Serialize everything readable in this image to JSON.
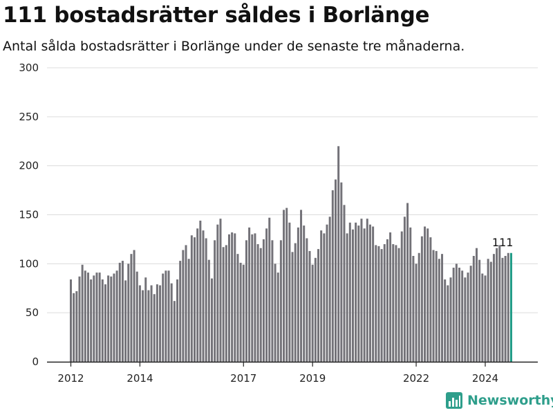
{
  "title": "111 bostadsrätter såldes i Borlänge",
  "subtitle": "Antal sålda bostadsrätter i Borlänge under de senaste tre månaderna.",
  "brand": "Newsworthy",
  "chart_data": {
    "type": "bar",
    "ylim": [
      0,
      300
    ],
    "yticks": [
      0,
      50,
      100,
      150,
      200,
      250,
      300
    ],
    "grid": true,
    "xtick_labels": [
      "2012",
      "2014",
      "2017",
      "2019",
      "2022",
      "2024"
    ],
    "highlight_label": "111",
    "colors": {
      "bars": "#737278",
      "highlight": "#1e9a85",
      "brand": "#2e9e8b"
    },
    "values": [
      84,
      70,
      72,
      87,
      99,
      93,
      91,
      84,
      88,
      91,
      91,
      84,
      79,
      88,
      87,
      90,
      93,
      101,
      103,
      83,
      100,
      110,
      114,
      92,
      78,
      73,
      86,
      73,
      78,
      69,
      79,
      78,
      90,
      93,
      93,
      80,
      62,
      84,
      103,
      114,
      119,
      105,
      129,
      127,
      136,
      144,
      134,
      126,
      104,
      85,
      124,
      140,
      146,
      117,
      119,
      130,
      132,
      131,
      110,
      101,
      99,
      124,
      137,
      130,
      131,
      120,
      116,
      125,
      136,
      147,
      124,
      100,
      91,
      124,
      155,
      157,
      142,
      112,
      121,
      137,
      155,
      139,
      126,
      113,
      99,
      106,
      115,
      134,
      131,
      140,
      148,
      175,
      186,
      220,
      183,
      160,
      131,
      142,
      135,
      142,
      139,
      146,
      136,
      146,
      140,
      138,
      119,
      118,
      115,
      120,
      125,
      132,
      120,
      119,
      116,
      133,
      148,
      162,
      137,
      108,
      100,
      111,
      128,
      138,
      136,
      127,
      114,
      113,
      105,
      110,
      84,
      78,
      86,
      96,
      100,
      96,
      93,
      86,
      91,
      98,
      108,
      116,
      104,
      90,
      88,
      105,
      102,
      110,
      116,
      119,
      106,
      108,
      111,
      111
    ]
  }
}
